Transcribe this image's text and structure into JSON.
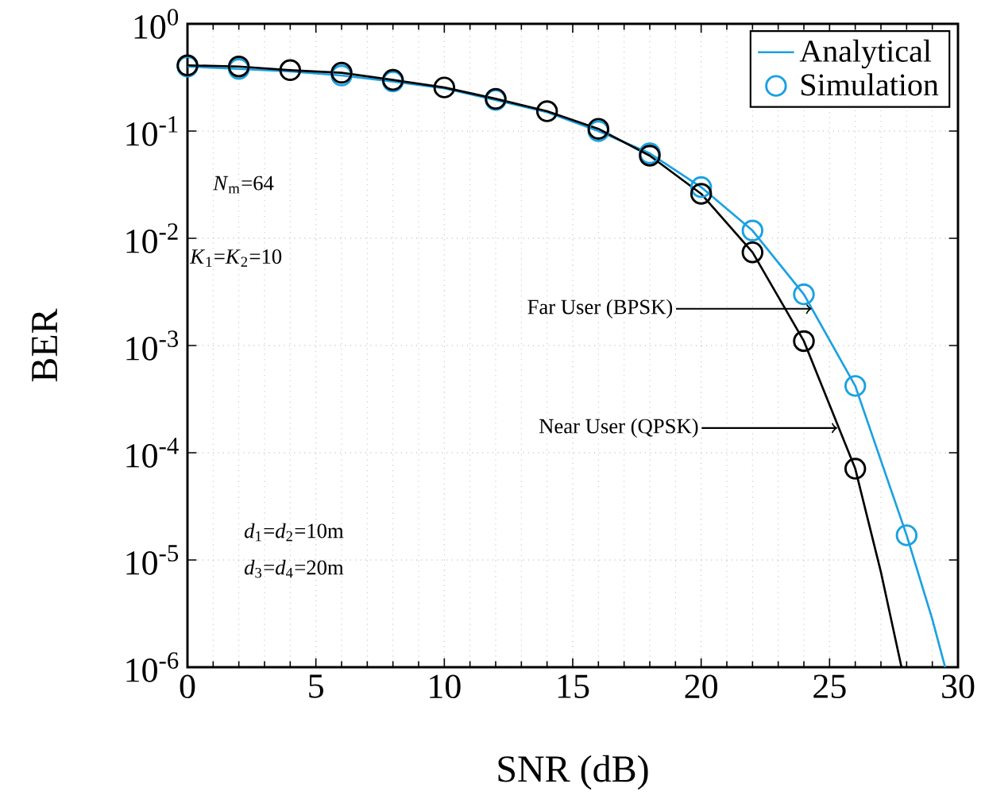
{
  "chart_data": {
    "type": "line",
    "xlabel": "SNR (dB)",
    "ylabel": "BER",
    "log": "y",
    "grid": true,
    "legend": "top right",
    "xlim": [
      0,
      30
    ],
    "xticks": [
      0,
      5,
      10,
      15,
      20,
      25,
      30
    ],
    "ylim": [
      1e-06,
      1
    ],
    "yticks": [
      {
        "value": 1,
        "label": "10$^{0}$"
      },
      {
        "value": 0.1,
        "label": "10$^{-1}$"
      },
      {
        "value": 0.01,
        "label": "10$^{-2}$"
      },
      {
        "value": 0.001,
        "label": "10$^{-3}$"
      },
      {
        "value": 0.0001,
        "label": "10$^{-4}$"
      },
      {
        "value": 1e-05,
        "label": "10$^{-5}$"
      },
      {
        "value": 1e-06,
        "label": "10$^{-6}$"
      }
    ],
    "series": [
      {
        "name": "Analytical",
        "type": "line",
        "marker": "none",
        "color": "#1ba1e2",
        "x": [
          0,
          2,
          4,
          6,
          8,
          10,
          12,
          14,
          16,
          18,
          20,
          22,
          24,
          26,
          28,
          29,
          29.5
        ],
        "values": [
          0.4,
          0.38,
          0.36,
          0.33,
          0.29,
          0.25,
          0.195,
          0.15,
          0.1,
          0.062,
          0.03,
          0.0118,
          0.003,
          0.00042,
          1.7e-05,
          2.8e-06,
          1e-06
        ]
      },
      {
        "name": "Simulation",
        "type": "scatter",
        "marker": "circle",
        "color": "#1ba1e2",
        "x": [
          0,
          2,
          4,
          6,
          8,
          10,
          12,
          14,
          16,
          18,
          20,
          22,
          24,
          26,
          28
        ],
        "values": [
          0.4,
          0.38,
          null,
          0.33,
          0.29,
          null,
          0.195,
          null,
          0.1,
          0.062,
          0.03,
          0.0118,
          0.003,
          0.00042,
          1.7e-05
        ]
      },
      {
        "type": "line",
        "marker": "none",
        "color": "#000000",
        "x": [
          0,
          2,
          4,
          6,
          8,
          10,
          12,
          14,
          16,
          18,
          20,
          22,
          24,
          26,
          27,
          27.8
        ],
        "values": [
          0.41,
          0.4,
          0.37,
          0.35,
          0.3,
          0.255,
          0.2,
          0.153,
          0.105,
          0.059,
          0.026,
          0.0074,
          0.0011,
          7.1e-05,
          7.7e-06,
          1e-06
        ]
      },
      {
        "type": "scatter",
        "marker": "circle",
        "color": "#000000",
        "x": [
          0,
          2,
          4,
          6,
          8,
          10,
          12,
          14,
          16,
          18,
          20,
          22,
          24,
          26
        ],
        "values": [
          0.41,
          0.4,
          0.37,
          0.35,
          0.3,
          0.255,
          0.2,
          0.153,
          0.105,
          0.059,
          0.026,
          0.0074,
          0.0011,
          7.1e-05
        ]
      }
    ],
    "annotations": [
      "*N*$_{m}$=64",
      "*K*$_{1}$=*K*$_{2}$=10",
      {
        "text": "Far User (BPSK)",
        "x": 24.3,
        "y": 0.0022
      },
      {
        "text": "Near User (QPSK)",
        "x": 25.3,
        "y": 0.00017
      },
      "*d*$_{1}$=*d*$_{2}$=10m",
      "*d*$_{3}$=*d*$_{4}$=20m"
    ]
  }
}
